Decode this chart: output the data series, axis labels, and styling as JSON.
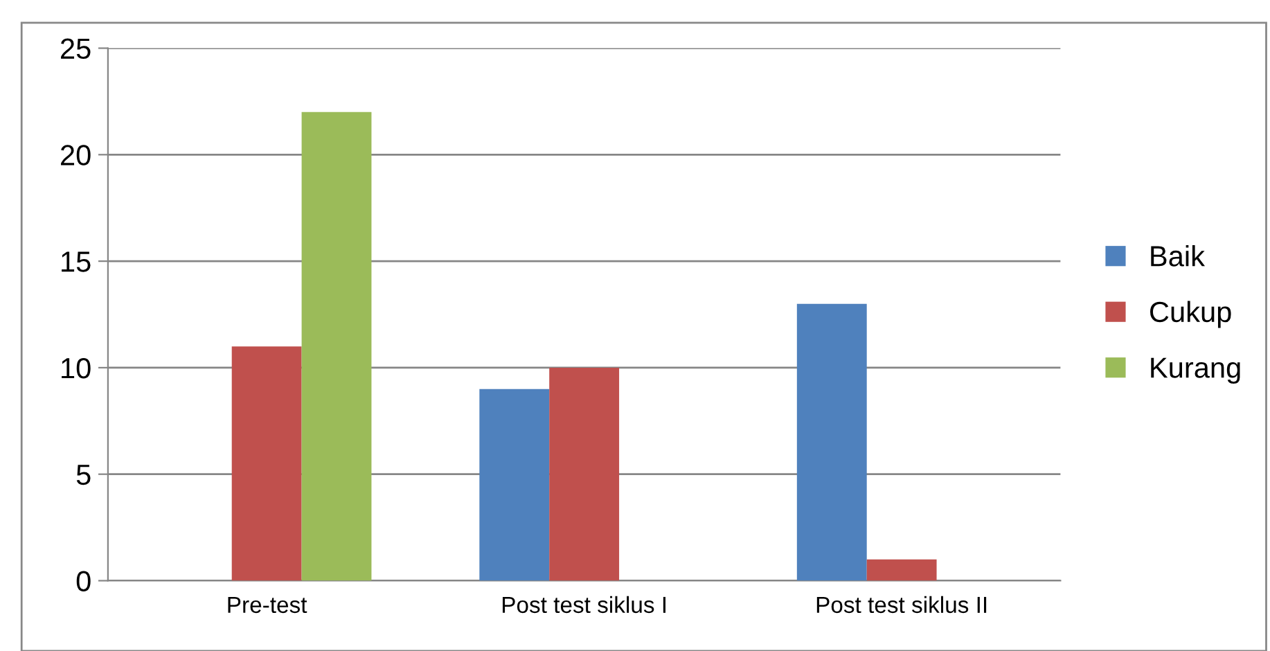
{
  "chart_data": {
    "type": "bar",
    "categories": [
      "Pre-test",
      "Post test siklus I",
      "Post test siklus II"
    ],
    "series": [
      {
        "name": "Baik",
        "color": "#4f81bd",
        "values": [
          0,
          9,
          13
        ]
      },
      {
        "name": "Cukup",
        "color": "#c0504d",
        "values": [
          11,
          10,
          1
        ]
      },
      {
        "name": "Kurang",
        "color": "#9bbb59",
        "values": [
          22,
          0,
          0
        ]
      }
    ],
    "ylim": [
      0,
      25
    ],
    "yticks": [
      0,
      5,
      10,
      15,
      20,
      25
    ],
    "grid": "y",
    "legend": "right"
  }
}
